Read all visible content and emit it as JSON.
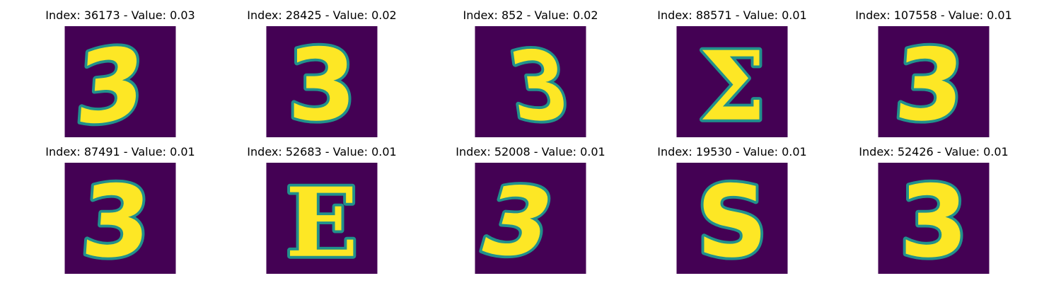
{
  "figure": {
    "colors": {
      "background": "#440154",
      "mid": "#21918c",
      "stroke": "#fde725"
    },
    "panels": [
      {
        "index": "36173",
        "value": "0.03",
        "title": "Index: 36173 - Value: 0.03",
        "glyph": "3",
        "style": "open-wide"
      },
      {
        "index": "28425",
        "value": "0.02",
        "title": "Index: 28425 - Value: 0.02",
        "glyph": "3",
        "style": "round"
      },
      {
        "index": "852",
        "value": "0.02",
        "title": "Index: 852 - Value: 0.02",
        "glyph": "3",
        "style": "zigzag"
      },
      {
        "index": "88571",
        "value": "0.01",
        "title": "Index: 88571 - Value: 0.01",
        "glyph": "Σ",
        "style": "epsilon"
      },
      {
        "index": "107558",
        "value": "0.01",
        "title": "Index: 107558 - Value: 0.01",
        "glyph": "3",
        "style": "flat-top"
      },
      {
        "index": "87491",
        "value": "0.01",
        "title": "Index: 87491 - Value: 0.01",
        "glyph": "3",
        "style": "flat-top"
      },
      {
        "index": "52683",
        "value": "0.01",
        "title": "Index: 52683 - Value: 0.01",
        "glyph": "E",
        "style": "epsilon"
      },
      {
        "index": "52008",
        "value": "0.01",
        "title": "Index: 52008 - Value: 0.01",
        "glyph": "3",
        "style": "slanted"
      },
      {
        "index": "19530",
        "value": "0.01",
        "title": "Index: 19530 - Value: 0.01",
        "glyph": "S",
        "style": "s-shape"
      },
      {
        "index": "52426",
        "value": "0.01",
        "title": "Index: 52426 - Value: 0.01",
        "glyph": "3",
        "style": "round"
      }
    ]
  }
}
